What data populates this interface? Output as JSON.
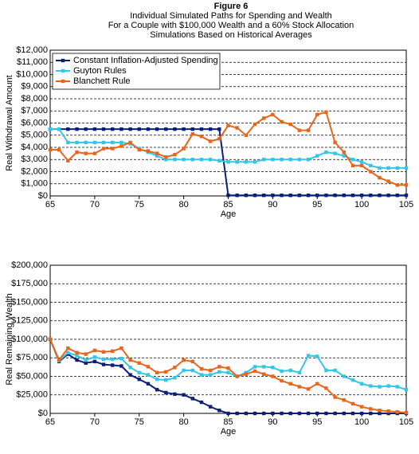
{
  "header": {
    "lines": [
      "Figure 6",
      "Individual Simulated Paths for Spending and Wealth",
      "For a Couple with $100,000 Wealth and a 60% Stock Allocation",
      "Simulations Based on Historical Averages"
    ]
  },
  "chart_data": [
    {
      "type": "line",
      "xlabel": "Age",
      "ylabel": "Real Withdrawal Amount",
      "x": [
        65,
        66,
        67,
        68,
        69,
        70,
        71,
        72,
        73,
        74,
        75,
        76,
        77,
        78,
        79,
        80,
        81,
        82,
        83,
        84,
        85,
        86,
        87,
        88,
        89,
        90,
        91,
        92,
        93,
        94,
        95,
        96,
        97,
        98,
        99,
        100,
        101,
        102,
        103,
        104,
        105
      ],
      "xlim": [
        65,
        105
      ],
      "xticks": [
        65,
        70,
        75,
        80,
        85,
        90,
        95,
        100,
        105
      ],
      "ylim": [
        0,
        12000
      ],
      "yticks": [
        {
          "value": 0,
          "label": "$0"
        },
        {
          "value": 1000,
          "label": "$1,000"
        },
        {
          "value": 2000,
          "label": "$2,000"
        },
        {
          "value": 3000,
          "label": "$3,000"
        },
        {
          "value": 4000,
          "label": "$4,000"
        },
        {
          "value": 5000,
          "label": "$5,000"
        },
        {
          "value": 6000,
          "label": "$6,000"
        },
        {
          "value": 7000,
          "label": "$7,000"
        },
        {
          "value": 8000,
          "label": "$8,000"
        },
        {
          "value": 9000,
          "label": "$9,000"
        },
        {
          "value": 10000,
          "label": "$10,000"
        },
        {
          "value": 11000,
          "label": "$11,000"
        },
        {
          "value": 12000,
          "label": "$12,000"
        }
      ],
      "grid": true,
      "legend": "upper left",
      "series": [
        {
          "name": "Constant Inflation-Adjusted Spending",
          "color": "#0a1f7a",
          "values": [
            5500,
            5500,
            5500,
            5500,
            5500,
            5500,
            5500,
            5500,
            5500,
            5500,
            5500,
            5500,
            5500,
            5500,
            5500,
            5500,
            5500,
            5500,
            5500,
            5500,
            50,
            50,
            50,
            50,
            50,
            50,
            50,
            50,
            50,
            50,
            50,
            50,
            50,
            50,
            50,
            50,
            50,
            50,
            50,
            50,
            50
          ]
        },
        {
          "name": "Guyton Rules",
          "color": "#33c6e8",
          "values": [
            5500,
            5500,
            4400,
            4400,
            4400,
            4400,
            4400,
            4400,
            4400,
            4300,
            3900,
            3600,
            3300,
            3000,
            3000,
            3000,
            3000,
            3000,
            3000,
            2900,
            2800,
            2800,
            2800,
            2800,
            3000,
            3000,
            3000,
            3000,
            3000,
            3000,
            3300,
            3600,
            3500,
            3300,
            3000,
            2800,
            2500,
            2300,
            2300,
            2300,
            2300
          ]
        },
        {
          "name": "Blanchett Rule",
          "color": "#e8651a",
          "values": [
            3800,
            3800,
            2900,
            3600,
            3500,
            3500,
            3900,
            3900,
            4100,
            4400,
            3800,
            3700,
            3500,
            3200,
            3400,
            3900,
            5100,
            4900,
            4500,
            4700,
            5800,
            5600,
            5000,
            5900,
            6400,
            6700,
            6100,
            5900,
            5400,
            5400,
            6700,
            6900,
            4400,
            3600,
            2500,
            2500,
            2000,
            1500,
            1200,
            900,
            900
          ]
        }
      ]
    },
    {
      "type": "line",
      "xlabel": "Age",
      "ylabel": "Real Remaining Wealth",
      "x": [
        65,
        66,
        67,
        68,
        69,
        70,
        71,
        72,
        73,
        74,
        75,
        76,
        77,
        78,
        79,
        80,
        81,
        82,
        83,
        84,
        85,
        86,
        87,
        88,
        89,
        90,
        91,
        92,
        93,
        94,
        95,
        96,
        97,
        98,
        99,
        100,
        101,
        102,
        103,
        104,
        105
      ],
      "xlim": [
        65,
        105
      ],
      "xticks": [
        65,
        70,
        75,
        80,
        85,
        90,
        95,
        100,
        105
      ],
      "ylim": [
        0,
        200000
      ],
      "yticks": [
        {
          "value": 0,
          "label": "$0"
        },
        {
          "value": 25000,
          "label": "$25,000"
        },
        {
          "value": 50000,
          "label": "$50,000"
        },
        {
          "value": 75000,
          "label": "$75,000"
        },
        {
          "value": 100000,
          "label": "$100,000"
        },
        {
          "value": 125000,
          "label": "$125,000"
        },
        {
          "value": 150000,
          "label": "$150,000"
        },
        {
          "value": 175000,
          "label": "$175,000"
        },
        {
          "value": 200000,
          "label": "$200,000"
        }
      ],
      "grid": true,
      "legend": false,
      "series": [
        {
          "name": "Constant Inflation-Adjusted Spending",
          "color": "#0a1f7a",
          "values": [
            100000,
            70000,
            80000,
            72000,
            68000,
            70000,
            66000,
            65000,
            64000,
            52000,
            46000,
            40000,
            32000,
            28000,
            26000,
            25000,
            20000,
            15000,
            9000,
            4000,
            0,
            0,
            0,
            0,
            0,
            0,
            0,
            0,
            0,
            0,
            0,
            0,
            0,
            0,
            0,
            0,
            0,
            0,
            0,
            0,
            0
          ]
        },
        {
          "name": "Guyton Rules",
          "color": "#33c6e8",
          "values": [
            100000,
            71000,
            82000,
            78000,
            72000,
            76000,
            73000,
            73000,
            74000,
            62000,
            55000,
            52000,
            46000,
            45000,
            48000,
            58000,
            58000,
            52000,
            52000,
            56000,
            55000,
            50000,
            55000,
            63000,
            63000,
            62000,
            57000,
            58000,
            55000,
            78000,
            77000,
            58000,
            58000,
            50000,
            45000,
            40000,
            37000,
            36000,
            37000,
            36000,
            32000
          ]
        },
        {
          "name": "Blanchett Rule",
          "color": "#e8651a",
          "values": [
            100000,
            72000,
            88000,
            82000,
            80000,
            85000,
            83000,
            84000,
            88000,
            72000,
            68000,
            63000,
            55000,
            56000,
            62000,
            72000,
            70000,
            60000,
            58000,
            63000,
            61000,
            50000,
            53000,
            57000,
            53000,
            50000,
            44000,
            40000,
            36000,
            33000,
            40000,
            34000,
            22000,
            18000,
            13000,
            9000,
            6000,
            4000,
            3000,
            2000,
            1000
          ]
        }
      ]
    }
  ]
}
